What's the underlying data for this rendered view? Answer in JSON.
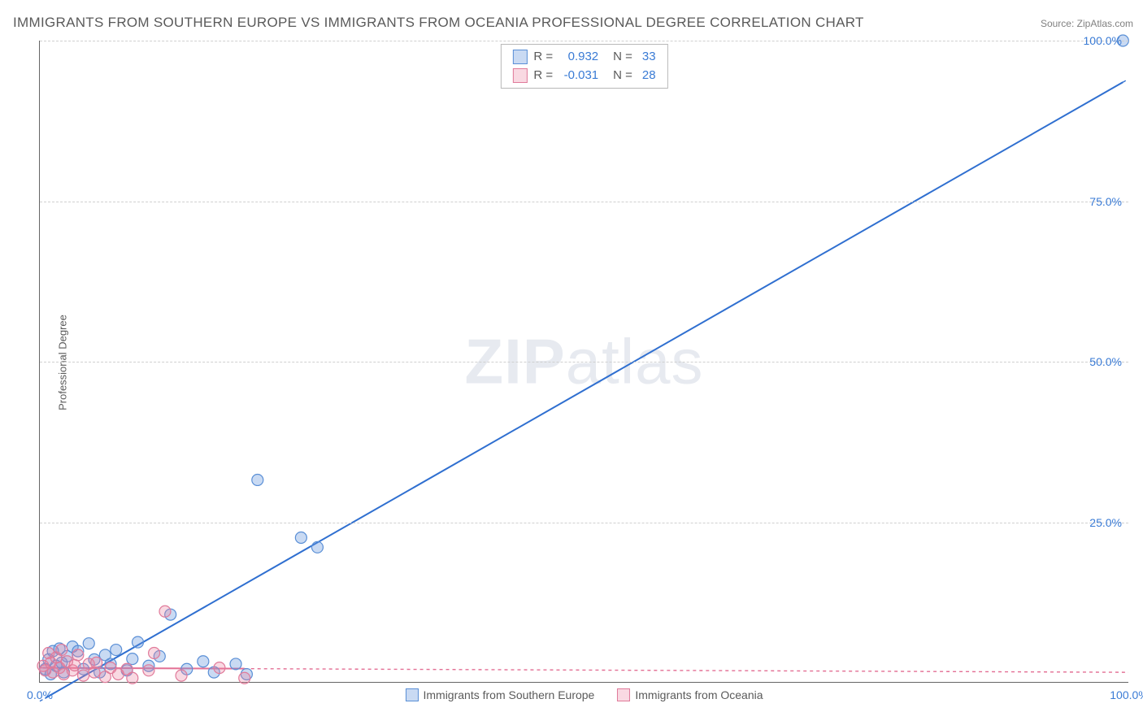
{
  "title": "IMMIGRANTS FROM SOUTHERN EUROPE VS IMMIGRANTS FROM OCEANIA PROFESSIONAL DEGREE CORRELATION CHART",
  "source": "Source: ZipAtlas.com",
  "ylabel": "Professional Degree",
  "watermark_bold": "ZIP",
  "watermark_rest": "atlas",
  "chart": {
    "type": "scatter",
    "xlim": [
      0,
      100
    ],
    "ylim": [
      0,
      100
    ],
    "xticks": [
      0,
      100
    ],
    "yticks": [
      25,
      50,
      75,
      100
    ],
    "xtick_labels": [
      "0.0%",
      "100.0%"
    ],
    "ytick_labels": [
      "25.0%",
      "50.0%",
      "75.0%",
      "100.0%"
    ],
    "grid_color": "#d8d8d8",
    "axis_color": "#666666",
    "tick_label_color": "#3a7bd5",
    "background_color": "#ffffff",
    "title_color": "#5a5a5a",
    "title_fontsize": 17,
    "label_fontsize": 13,
    "tick_fontsize": 14,
    "marker_radius": 7,
    "marker_stroke_width": 1.2,
    "trendline_width": 2,
    "trendline_extrapolate_dash": "4,4"
  },
  "series": [
    {
      "name": "Immigrants from Southern Europe",
      "fill": "rgba(99,148,222,0.35)",
      "stroke": "#5a8fd6",
      "line_color": "#2f6fd0",
      "R": "0.932",
      "N": "33",
      "trend": {
        "x1": 0,
        "y1": -3,
        "x2": 100,
        "y2": 94
      },
      "points": [
        [
          0.5,
          2.0
        ],
        [
          0.8,
          3.5
        ],
        [
          1.0,
          1.2
        ],
        [
          1.2,
          4.8
        ],
        [
          1.5,
          2.5
        ],
        [
          1.8,
          5.2
        ],
        [
          2.0,
          3.0
        ],
        [
          2.2,
          1.5
        ],
        [
          2.5,
          4.0
        ],
        [
          3.0,
          5.5
        ],
        [
          3.5,
          4.8
        ],
        [
          4.0,
          2.0
        ],
        [
          4.5,
          6.0
        ],
        [
          5.0,
          3.5
        ],
        [
          5.5,
          1.5
        ],
        [
          6.0,
          4.2
        ],
        [
          6.5,
          2.8
        ],
        [
          7.0,
          5.0
        ],
        [
          8.0,
          1.8
        ],
        [
          8.5,
          3.6
        ],
        [
          9.0,
          6.2
        ],
        [
          10.0,
          2.5
        ],
        [
          11.0,
          4.0
        ],
        [
          12.0,
          10.5
        ],
        [
          13.5,
          2.0
        ],
        [
          15.0,
          3.2
        ],
        [
          16.0,
          1.5
        ],
        [
          18.0,
          2.8
        ],
        [
          19.0,
          1.2
        ],
        [
          20.0,
          31.5
        ],
        [
          24.0,
          22.5
        ],
        [
          25.5,
          21.0
        ],
        [
          99.5,
          100.0
        ]
      ]
    },
    {
      "name": "Immigrants from Oceania",
      "fill": "rgba(235,130,160,0.30)",
      "stroke": "#e07a9a",
      "line_color": "#e36f94",
      "R": "-0.031",
      "N": "28",
      "trend": {
        "x1": 0,
        "y1": 2.2,
        "x2": 100,
        "y2": 1.5
      },
      "points": [
        [
          0.3,
          2.5
        ],
        [
          0.5,
          1.8
        ],
        [
          0.8,
          4.5
        ],
        [
          1.0,
          3.0
        ],
        [
          1.2,
          1.5
        ],
        [
          1.5,
          3.8
        ],
        [
          1.8,
          2.2
        ],
        [
          2.0,
          5.0
        ],
        [
          2.2,
          1.2
        ],
        [
          2.5,
          3.2
        ],
        [
          3.0,
          1.8
        ],
        [
          3.2,
          2.6
        ],
        [
          3.5,
          4.2
        ],
        [
          4.0,
          1.0
        ],
        [
          4.5,
          2.8
        ],
        [
          5.0,
          1.5
        ],
        [
          5.2,
          3.0
        ],
        [
          6.0,
          0.8
        ],
        [
          6.5,
          2.2
        ],
        [
          7.2,
          1.2
        ],
        [
          8.0,
          2.0
        ],
        [
          8.5,
          0.6
        ],
        [
          10.0,
          1.8
        ],
        [
          10.5,
          4.5
        ],
        [
          11.5,
          11.0
        ],
        [
          13.0,
          1.0
        ],
        [
          16.5,
          2.2
        ],
        [
          18.8,
          0.6
        ]
      ]
    }
  ],
  "stats_labels": {
    "R": "R  =",
    "N": "N  ="
  },
  "legend_swatch_size": 16
}
